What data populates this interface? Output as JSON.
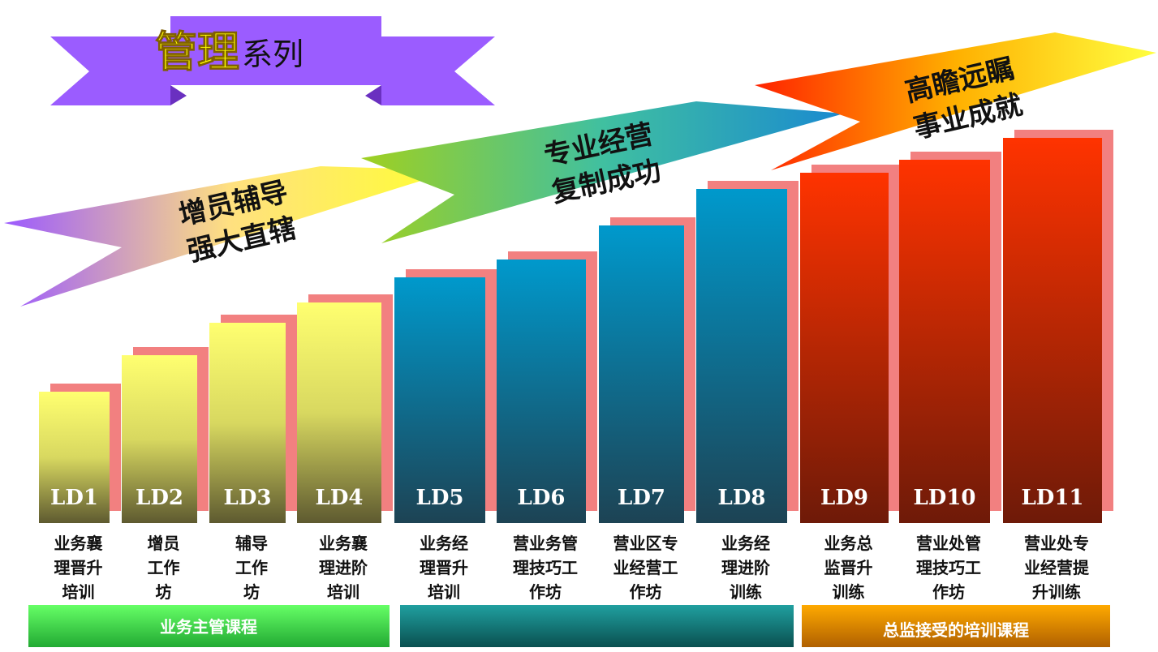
{
  "title": {
    "main": "管理",
    "sub": "系列"
  },
  "arrows": [
    {
      "lines": [
        "增员辅导",
        "强大直辖"
      ]
    },
    {
      "lines": [
        "专业经营",
        "复制成功"
      ]
    },
    {
      "lines": [
        "高瞻远瞩",
        "事业成就"
      ]
    }
  ],
  "steps": [
    {
      "code": "LD1",
      "label": [
        "业务襄",
        "理晋升",
        "培训"
      ]
    },
    {
      "code": "LD2",
      "label": [
        "增员",
        "工作",
        "坊"
      ]
    },
    {
      "code": "LD3",
      "label": [
        "辅导",
        "工作",
        "坊"
      ]
    },
    {
      "code": "LD4",
      "label": [
        "业务襄",
        "理进阶",
        "培训"
      ]
    },
    {
      "code": "LD5",
      "label": [
        "业务经",
        "理晋升",
        "培训"
      ]
    },
    {
      "code": "LD6",
      "label": [
        "营业务管",
        "理技巧工",
        "作坊"
      ]
    },
    {
      "code": "LD7",
      "label": [
        "营业区专",
        "业经营工",
        "作坊"
      ]
    },
    {
      "code": "LD8",
      "label": [
        "业务经",
        "理进阶",
        "训练"
      ]
    },
    {
      "code": "LD9",
      "label": [
        "业务总",
        "监晋升",
        "训练"
      ]
    },
    {
      "code": "LD10",
      "label": [
        "营业处管",
        "理技巧工",
        "作坊"
      ]
    },
    {
      "code": "LD11",
      "label": [
        "营业处专",
        "业经营提",
        "升训练"
      ]
    }
  ],
  "groups": [
    "业务主管课程",
    "总监接受的培训课程"
  ]
}
